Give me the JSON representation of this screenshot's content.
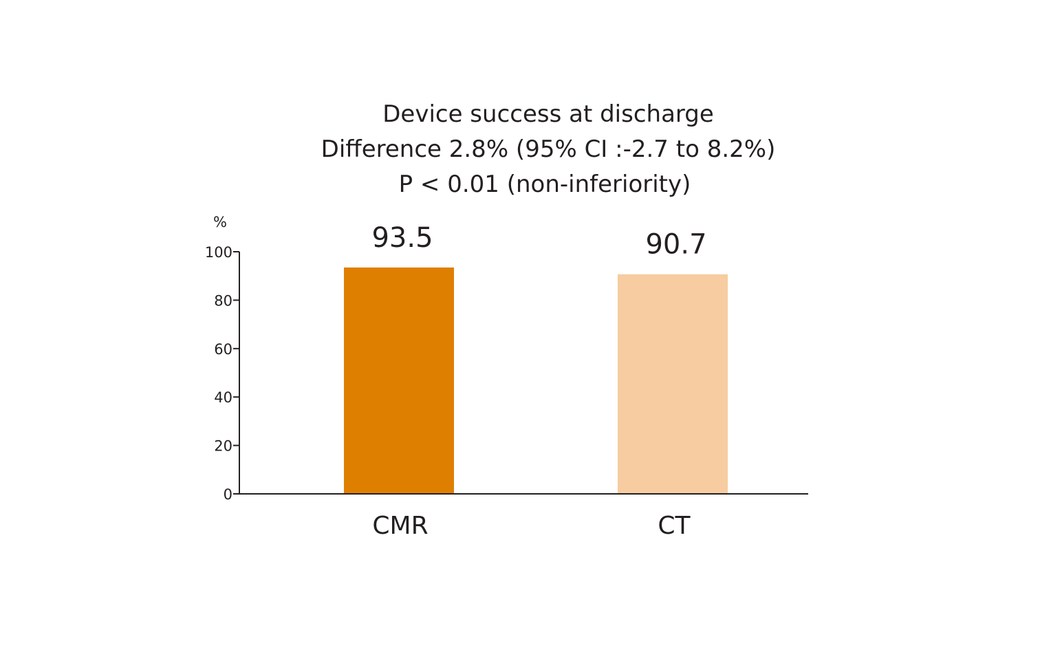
{
  "chart_data": {
    "type": "bar",
    "title": [
      "Device success at discharge",
      "Difference 2.8% (95% CI :-2.7 to 8.2%)",
      "P < 0.01 (non-inferiority)"
    ],
    "ylabel": "%",
    "xlabel": "",
    "ylim": [
      0,
      100
    ],
    "yticks": [
      "0",
      "20",
      "40",
      "60",
      "80",
      "100"
    ],
    "categories": [
      "CMR",
      "CT"
    ],
    "values": [
      93.5,
      90.7
    ],
    "value_labels": [
      "93.5",
      "90.7"
    ],
    "colors": [
      "#df7f00",
      "#f6cca0"
    ],
    "grid": false,
    "legend": "none"
  }
}
